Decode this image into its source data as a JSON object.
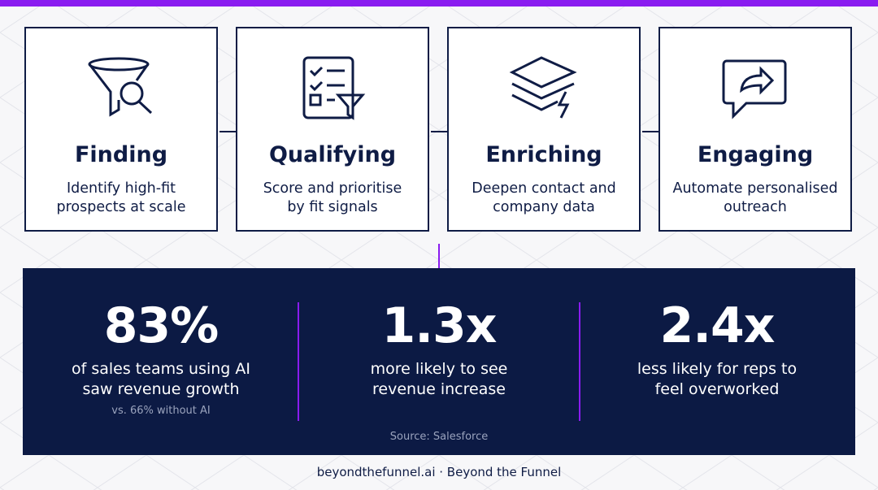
{
  "steps": [
    {
      "title": "Finding",
      "description_lines": [
        "Identify high-fit",
        "prospects at scale"
      ]
    },
    {
      "title": "Qualifying",
      "description_lines": [
        "Score and prioritise",
        "by fit signals"
      ]
    },
    {
      "title": "Enriching",
      "description_lines": [
        "Deepen contact and",
        "company data"
      ]
    },
    {
      "title": "Engaging",
      "description_lines": [
        "Automate personalised",
        "outreach"
      ]
    }
  ],
  "stats": [
    {
      "value": "83%",
      "description_lines": [
        "of sales teams using AI",
        "saw revenue growth"
      ],
      "note": "vs. 66% without AI"
    },
    {
      "value": "1.3x",
      "description_lines": [
        "more likely to see",
        "revenue increase"
      ]
    },
    {
      "value": "2.4x",
      "description_lines": [
        "less likely for reps to",
        "feel overworked"
      ]
    }
  ],
  "source": "Source: Salesforce",
  "footer": "beyondthefunnel.ai · Beyond the Funnel"
}
